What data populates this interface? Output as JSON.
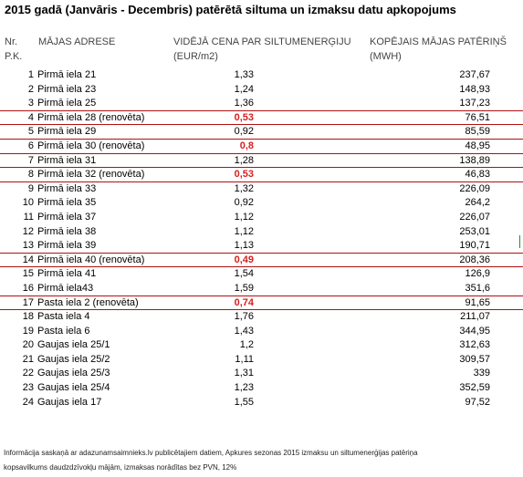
{
  "title": "2015 gadā (Janvāris - Decembris) patērētā siltuma un izmaksu datu apkopojums",
  "headers": {
    "nr_line1": "Nr.",
    "nr_line2": "P.K.",
    "address": "MĀJAS ADRESE",
    "price_line1": "VIDĒJĀ CENA PAR SILTUMENERĢIJU",
    "price_line2": "(EUR/m2)",
    "total_line1": "KOPĒJAIS MĀJAS PATĒRIŅŠ",
    "total_line2": "(MWH)"
  },
  "colors": {
    "highlight": "#d81e1e",
    "separator": "#b01010"
  },
  "rows": [
    {
      "nr": "1",
      "address": "Pirmā iela 21",
      "price": "1,33",
      "total": "237,67",
      "renovated": false
    },
    {
      "nr": "2",
      "address": "Pirmā iela 23",
      "price": "1,24",
      "total": "148,93",
      "renovated": false
    },
    {
      "nr": "3",
      "address": "Pirmā iela 25",
      "price": "1,36",
      "total": "137,23",
      "renovated": false
    },
    {
      "nr": "4",
      "address": "Pirmā iela 28 (renovēta)",
      "price": "0,53",
      "total": "76,51",
      "renovated": true
    },
    {
      "nr": "5",
      "address": "Pirmā iela 29",
      "price": "0,92",
      "total": "85,59",
      "renovated": false
    },
    {
      "nr": "6",
      "address": "Pirmā iela 30 (renovēta)",
      "price": "0,8",
      "total": "48,95",
      "renovated": true
    },
    {
      "nr": "7",
      "address": "Pirmā iela 31",
      "price": "1,28",
      "total": "138,89",
      "renovated": false
    },
    {
      "nr": "8",
      "address": "Pirmā iela 32 (renovēta)",
      "price": "0,53",
      "total": "46,83",
      "renovated": true
    },
    {
      "nr": "9",
      "address": "Pirmā iela 33",
      "price": "1,32",
      "total": "226,09",
      "renovated": false
    },
    {
      "nr": "10",
      "address": "Pirmā iela 35",
      "price": "0,92",
      "total": "264,2",
      "renovated": false
    },
    {
      "nr": "11",
      "address": "Pirmā iela 37",
      "price": "1,12",
      "total": "226,07",
      "renovated": false
    },
    {
      "nr": "12",
      "address": "Pirmā iela 38",
      "price": "1,12",
      "total": "253,01",
      "renovated": false
    },
    {
      "nr": "13",
      "address": "Pirmā iela 39",
      "price": "1,13",
      "total": "190,71",
      "renovated": false
    },
    {
      "nr": "14",
      "address": "Pirmā iela 40 (renovēta)",
      "price": "0,49",
      "total": "208,36",
      "renovated": true
    },
    {
      "nr": "15",
      "address": "Pirmā iela 41",
      "price": "1,54",
      "total": "126,9",
      "renovated": false
    },
    {
      "nr": "16",
      "address": "Pirmā iela43",
      "price": "1,59",
      "total": "351,6",
      "renovated": false
    },
    {
      "nr": "17",
      "address": "Pasta iela 2 (renovēta)",
      "price": "0,74",
      "total": "91,65",
      "renovated": true
    },
    {
      "nr": "18",
      "address": "Pasta iela 4",
      "price": "1,76",
      "total": "211,07",
      "renovated": false
    },
    {
      "nr": "19",
      "address": "Pasta iela 6",
      "price": "1,43",
      "total": "344,95",
      "renovated": false
    },
    {
      "nr": "20",
      "address": "Gaujas iela 25/1",
      "price": "1,2",
      "total": "312,63",
      "renovated": false
    },
    {
      "nr": "21",
      "address": "Gaujas iela 25/2",
      "price": "1,11",
      "total": "309,57",
      "renovated": false
    },
    {
      "nr": "22",
      "address": "Gaujas iela 25/3",
      "price": "1,31",
      "total": "339",
      "renovated": false
    },
    {
      "nr": "23",
      "address": "Gaujas iela 25/4",
      "price": "1,23",
      "total": "352,59",
      "renovated": false
    },
    {
      "nr": "24",
      "address": "Gaujas iela 17",
      "price": "1,55",
      "total": "97,52",
      "renovated": false
    }
  ],
  "footer": {
    "line1": "Informācija saskaņā ar adazunamsaimnieks.lv publicētajiem datiem, Apkures sezonas 2015 izmaksu un siltumenerģijas patēriņa",
    "line2": "kopsavilkums daudzdzīvokļu mājām, izmaksas norādītas bez PVN, 12%"
  }
}
